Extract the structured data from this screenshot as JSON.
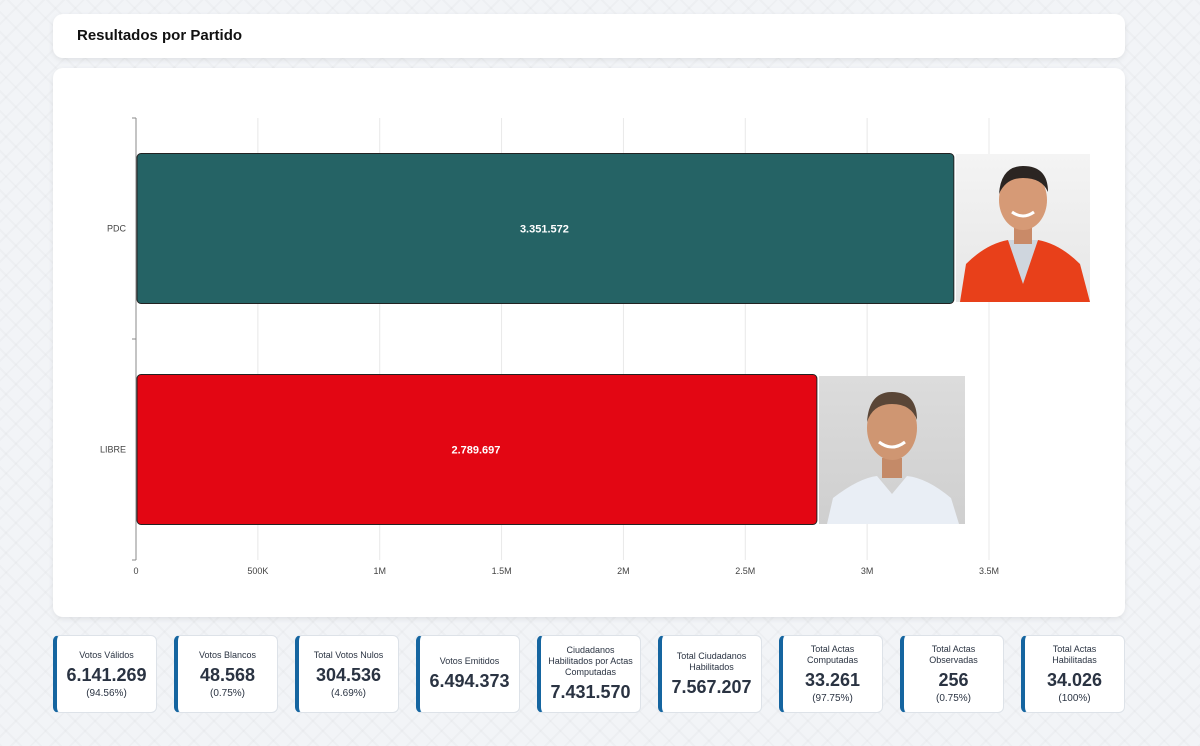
{
  "header": {
    "title": "Resultados por Partido"
  },
  "chart_data": {
    "type": "bar",
    "orientation": "horizontal",
    "categories": [
      "PDC",
      "LIBRE"
    ],
    "values": [
      3351572,
      2789697
    ],
    "value_labels": [
      "3.351.572",
      "2.789.697"
    ],
    "colors": [
      "#256365",
      "#e30613"
    ],
    "xlim": [
      0,
      3500000
    ],
    "x_ticks": [
      0,
      500000,
      1000000,
      1500000,
      2000000,
      2500000,
      3000000,
      3500000
    ],
    "x_tick_labels": [
      "0",
      "500K",
      "1M",
      "1.5M",
      "2M",
      "2.5M",
      "3M",
      "3.5M"
    ],
    "grid": true,
    "xlabel": "",
    "ylabel": ""
  },
  "stats": [
    {
      "label": "Votos Válidos",
      "value": "6.141.269",
      "pct": "(94.56%)"
    },
    {
      "label": "Votos Blancos",
      "value": "48.568",
      "pct": "(0.75%)"
    },
    {
      "label": "Total Votos Nulos",
      "value": "304.536",
      "pct": "(4.69%)"
    },
    {
      "label": "Votos Emitidos",
      "value": "6.494.373",
      "pct": ""
    },
    {
      "label": "Ciudadanos Habilitados por Actas Computadas",
      "value": "7.431.570",
      "pct": ""
    },
    {
      "label": "Total Ciudadanos Habilitados",
      "value": "7.567.207",
      "pct": ""
    },
    {
      "label": "Total Actas Computadas",
      "value": "33.261",
      "pct": "(97.75%)"
    },
    {
      "label": "Total Actas Observadas",
      "value": "256",
      "pct": "(0.75%)"
    },
    {
      "label": "Total Actas Habilitadas",
      "value": "34.026",
      "pct": "(100%)"
    }
  ]
}
